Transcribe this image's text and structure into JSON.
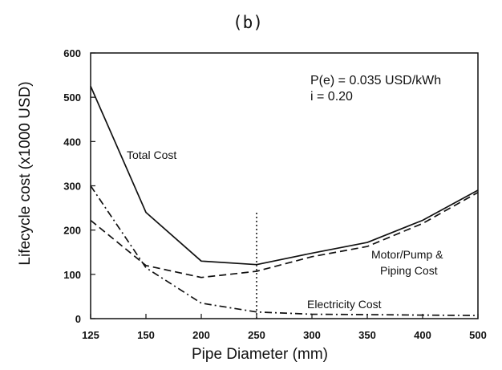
{
  "panel_label": "(b)",
  "chart_data": {
    "type": "line",
    "x": [
      "125",
      "150",
      "200",
      "250",
      "300",
      "350",
      "400",
      "500"
    ],
    "xlabel": "Pipe Diameter (mm)",
    "ylabel": "Lifecycle cost (x1000 USD)",
    "ylim": [
      0,
      600
    ],
    "yticks": [
      "0",
      "100",
      "200",
      "300",
      "400",
      "500",
      "600"
    ],
    "grid": false,
    "series": [
      {
        "name": "Total Cost",
        "values": [
          525,
          240,
          130,
          122,
          148,
          172,
          222,
          290
        ],
        "style": "solid"
      },
      {
        "name": "Motor/Pump & Piping Cost",
        "values": [
          222,
          120,
          93,
          107,
          140,
          163,
          215,
          285
        ],
        "style": "dashed"
      },
      {
        "name": "Electricity Cost",
        "values": [
          300,
          115,
          35,
          15,
          10,
          9,
          8,
          7
        ],
        "style": "dashdot"
      }
    ],
    "marker_line": {
      "x": "250",
      "from": 0,
      "to": 240
    },
    "annotations": {
      "price": "P(e) = 0.035 USD/kWh",
      "rate": "i = 0.20",
      "total_cost": "Total Cost",
      "motor_line1": "Motor/Pump &",
      "motor_line2": "Piping Cost",
      "electricity": "Electricity Cost"
    }
  }
}
